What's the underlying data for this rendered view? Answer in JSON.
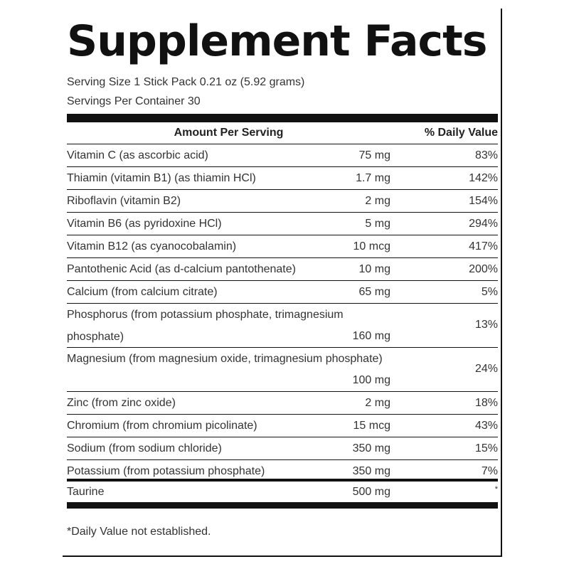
{
  "title": "Supplement Facts",
  "serving_size": "Serving Size 1 Stick Pack 0.21 oz (5.92 grams)",
  "servings_per_container": "Servings Per Container 30",
  "header": {
    "amount_per_serving": "Amount Per Serving",
    "daily_value": "% Daily Value"
  },
  "nutrients": [
    {
      "name": "Vitamin C (as ascorbic acid)",
      "amount": "75 mg",
      "daily_value": "83%"
    },
    {
      "name": "Thiamin (vitamin B1) (as thiamin HCl)",
      "amount": "1.7 mg",
      "daily_value": "142%"
    },
    {
      "name": "Riboflavin (vitamin B2)",
      "amount": "2 mg",
      "daily_value": "154%"
    },
    {
      "name": "Vitamin B6 (as pyridoxine HCl)",
      "amount": "5 mg",
      "daily_value": "294%"
    },
    {
      "name": "Vitamin B12 (as cyanocobalamin)",
      "amount": "10 mcg",
      "daily_value": "417%"
    },
    {
      "name": "Pantothenic Acid (as d-calcium pantothenate)",
      "amount": "10 mg",
      "daily_value": "200%"
    },
    {
      "name": "Calcium (from calcium citrate)",
      "amount": "65 mg",
      "daily_value": "5%"
    },
    {
      "name": "Phosphorus (from potassium phosphate, trimagnesium phosphate)",
      "amount": "160 mg",
      "daily_value": "13%"
    },
    {
      "name": "Magnesium (from magnesium oxide, trimagnesium phosphate)",
      "amount": "100 mg",
      "daily_value": "24%"
    },
    {
      "name": "Zinc (from zinc oxide)",
      "amount": "2 mg",
      "daily_value": "18%"
    },
    {
      "name": "Chromium (from chromium picolinate)",
      "amount": "15 mcg",
      "daily_value": "43%"
    },
    {
      "name": "Sodium (from sodium chloride)",
      "amount": "350 mg",
      "daily_value": "15%"
    },
    {
      "name": "Potassium (from potassium phosphate)",
      "amount": "350 mg",
      "daily_value": "7%"
    }
  ],
  "other": {
    "name": "Taurine",
    "amount": "500 mg",
    "daily_value": "*"
  },
  "footnote": "*Daily Value not established."
}
